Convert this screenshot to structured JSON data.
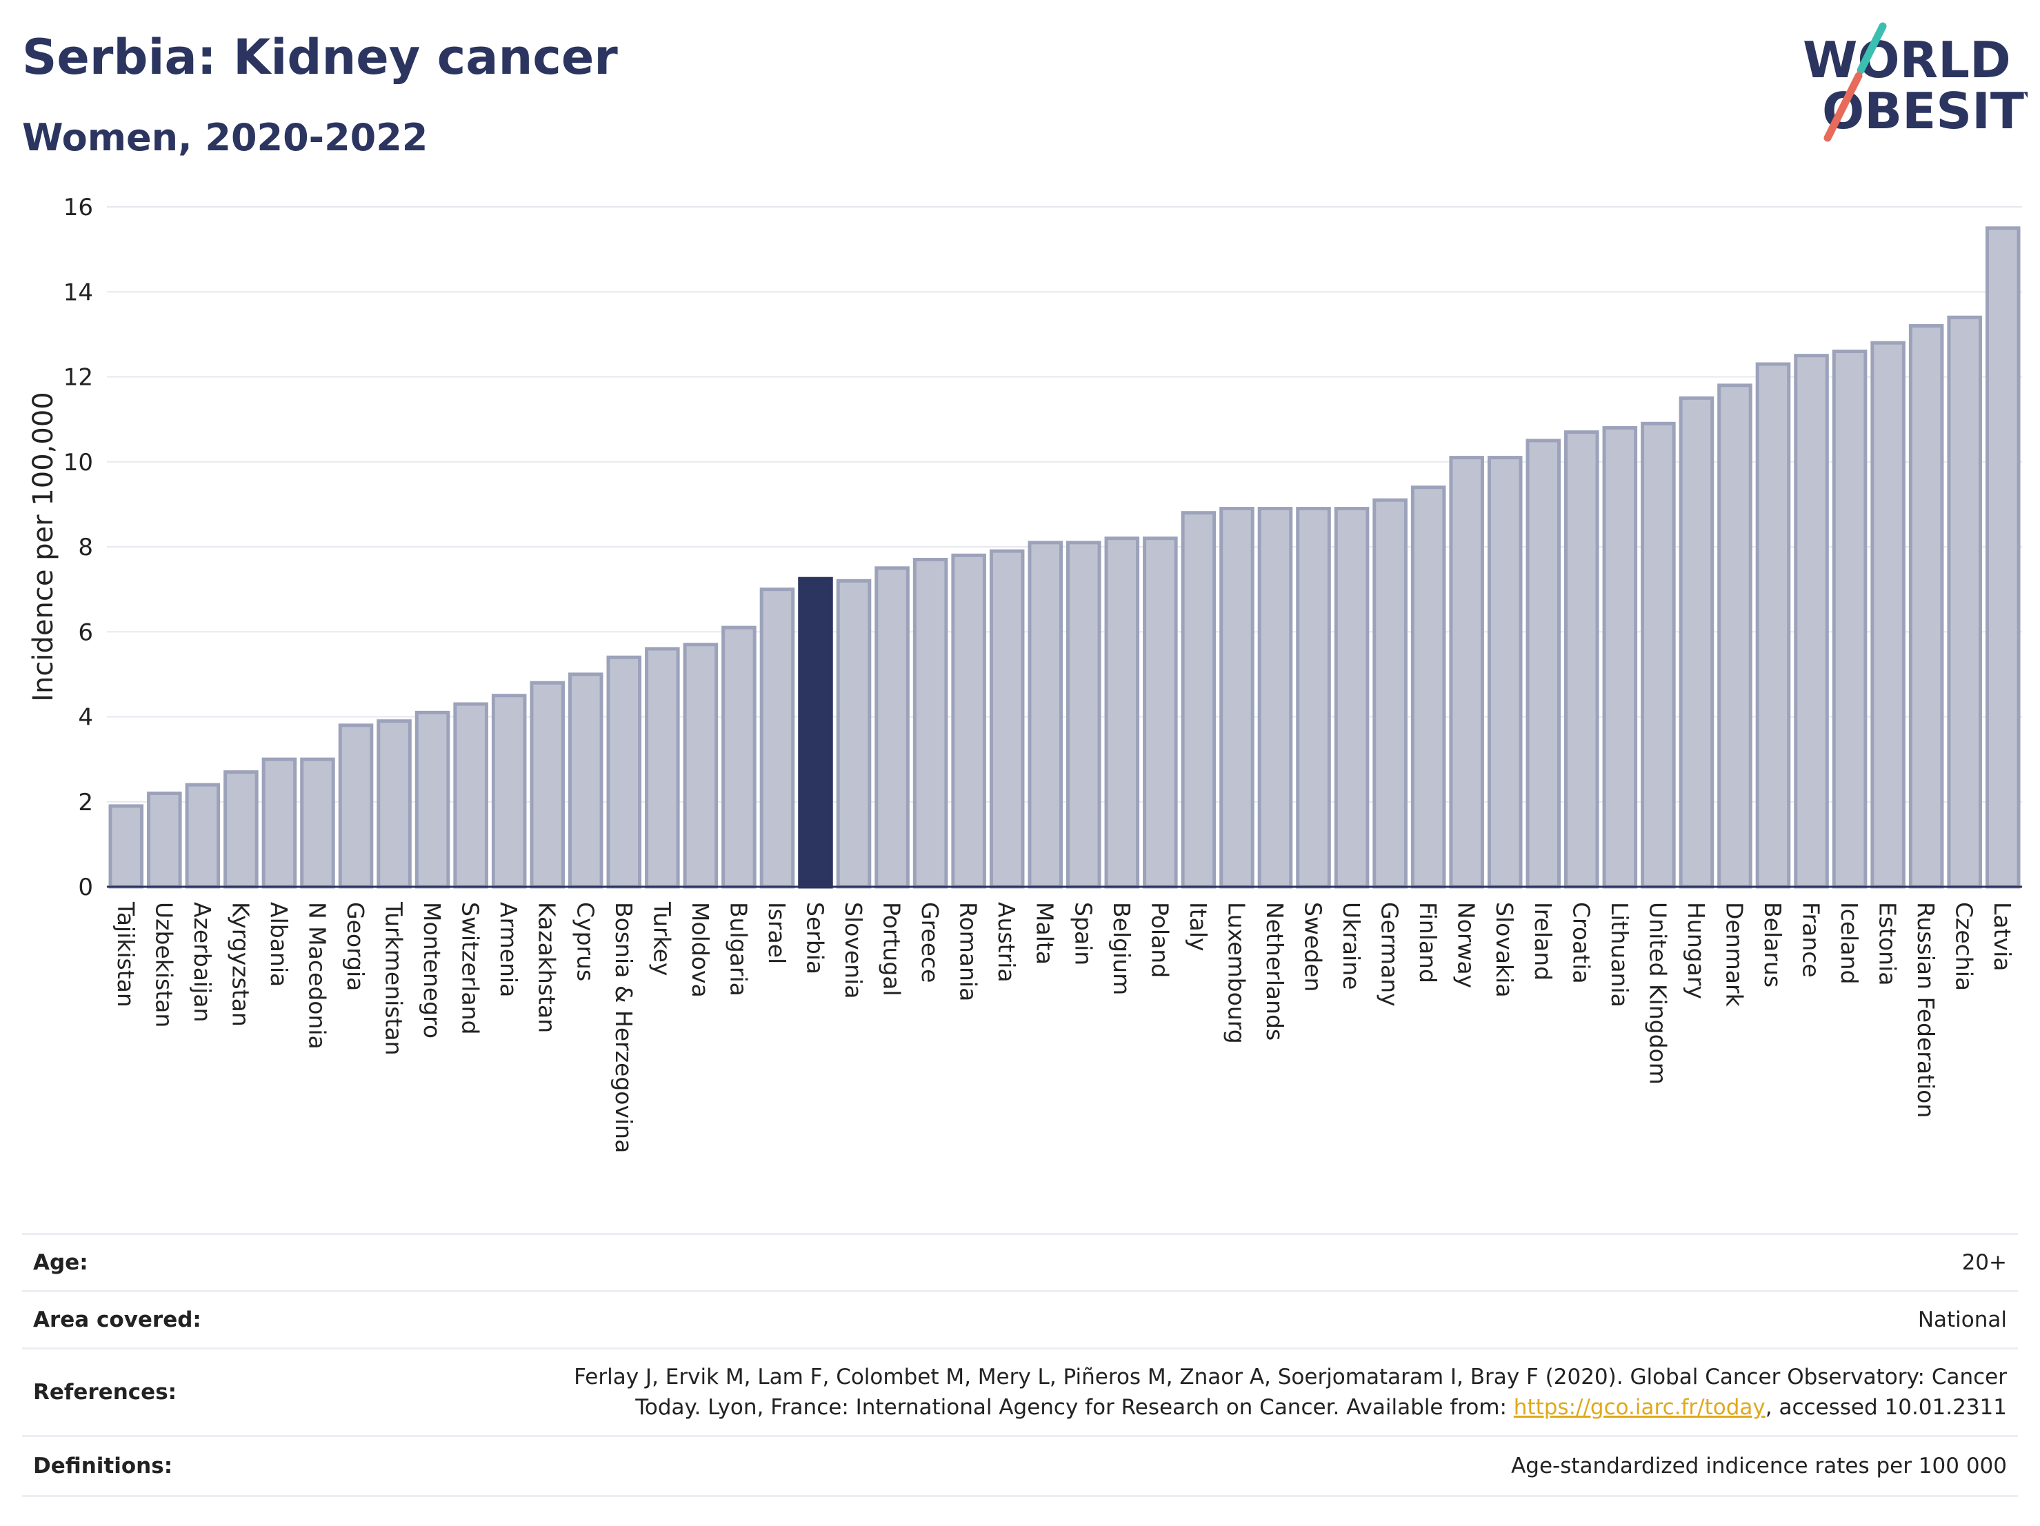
{
  "header": {
    "title": "Serbia: Kidney cancer",
    "subtitle": "Women, 2020-2022"
  },
  "logo": {
    "line1": "WORLD",
    "line2": "OBESITY",
    "colors": {
      "text": "#2b3560",
      "accent_top": "#3bbfb0",
      "accent_bottom": "#e86a5a"
    }
  },
  "chart_data": {
    "type": "bar",
    "ylabel": "Incidence per 100,000",
    "xlabel": "",
    "ylim": [
      0,
      16
    ],
    "yticks": [
      0,
      2,
      4,
      6,
      8,
      10,
      12,
      14,
      16
    ],
    "grid": true,
    "highlight": "Serbia",
    "colors": {
      "bar": "#bfc3d1",
      "bar_edge": "#9ca2ba",
      "highlight": "#2b3560"
    },
    "categories": [
      "Tajikistan",
      "Uzbekistan",
      "Azerbaijan",
      "Kyrgyzstan",
      "Albania",
      "N Macedonia",
      "Georgia",
      "Turkmenistan",
      "Montenegro",
      "Switzerland",
      "Armenia",
      "Kazakhstan",
      "Cyprus",
      "Bosnia & Herzegovina",
      "Turkey",
      "Moldova",
      "Bulgaria",
      "Israel",
      "Serbia",
      "Slovenia",
      "Portugal",
      "Greece",
      "Romania",
      "Austria",
      "Malta",
      "Spain",
      "Belgium",
      "Poland",
      "Italy",
      "Luxembourg",
      "Netherlands",
      "Sweden",
      "Ukraine",
      "Germany",
      "Finland",
      "Norway",
      "Slovakia",
      "Ireland",
      "Croatia",
      "Lithuania",
      "United Kingdom",
      "Hungary",
      "Denmark",
      "Belarus",
      "France",
      "Iceland",
      "Estonia",
      "Russian Federation",
      "Czechia",
      "Latvia"
    ],
    "values": [
      1.9,
      2.2,
      2.4,
      2.7,
      3.0,
      3.0,
      3.8,
      3.9,
      4.1,
      4.3,
      4.5,
      4.8,
      5.0,
      5.4,
      5.6,
      5.7,
      6.1,
      7.0,
      7.25,
      7.2,
      7.5,
      7.7,
      7.8,
      7.9,
      8.1,
      8.1,
      8.2,
      8.2,
      8.8,
      8.9,
      8.9,
      8.9,
      8.9,
      9.1,
      9.4,
      10.1,
      10.1,
      10.5,
      10.7,
      10.8,
      10.9,
      11.5,
      11.8,
      12.3,
      12.5,
      12.6,
      12.8,
      13.2,
      13.4,
      15.5
    ]
  },
  "meta": {
    "age_label": "Age:",
    "age_value": "20+",
    "area_label": "Area covered:",
    "area_value": "National",
    "references_label": "References:",
    "references_text_1": "Ferlay J, Ervik M, Lam F, Colombet M, Mery L, Piñeros M, Znaor A, Soerjomataram I, Bray F (2020). Global Cancer Observatory: Cancer",
    "references_text_2": "Today. Lyon, France: International Agency for Research on Cancer. Available from: ",
    "references_link": "https://gco.iarc.fr/today",
    "references_text_3": ", accessed 10.01.2311",
    "definitions_label": "Definitions:",
    "definitions_value": "Age-standardized indicence rates per 100 000"
  }
}
